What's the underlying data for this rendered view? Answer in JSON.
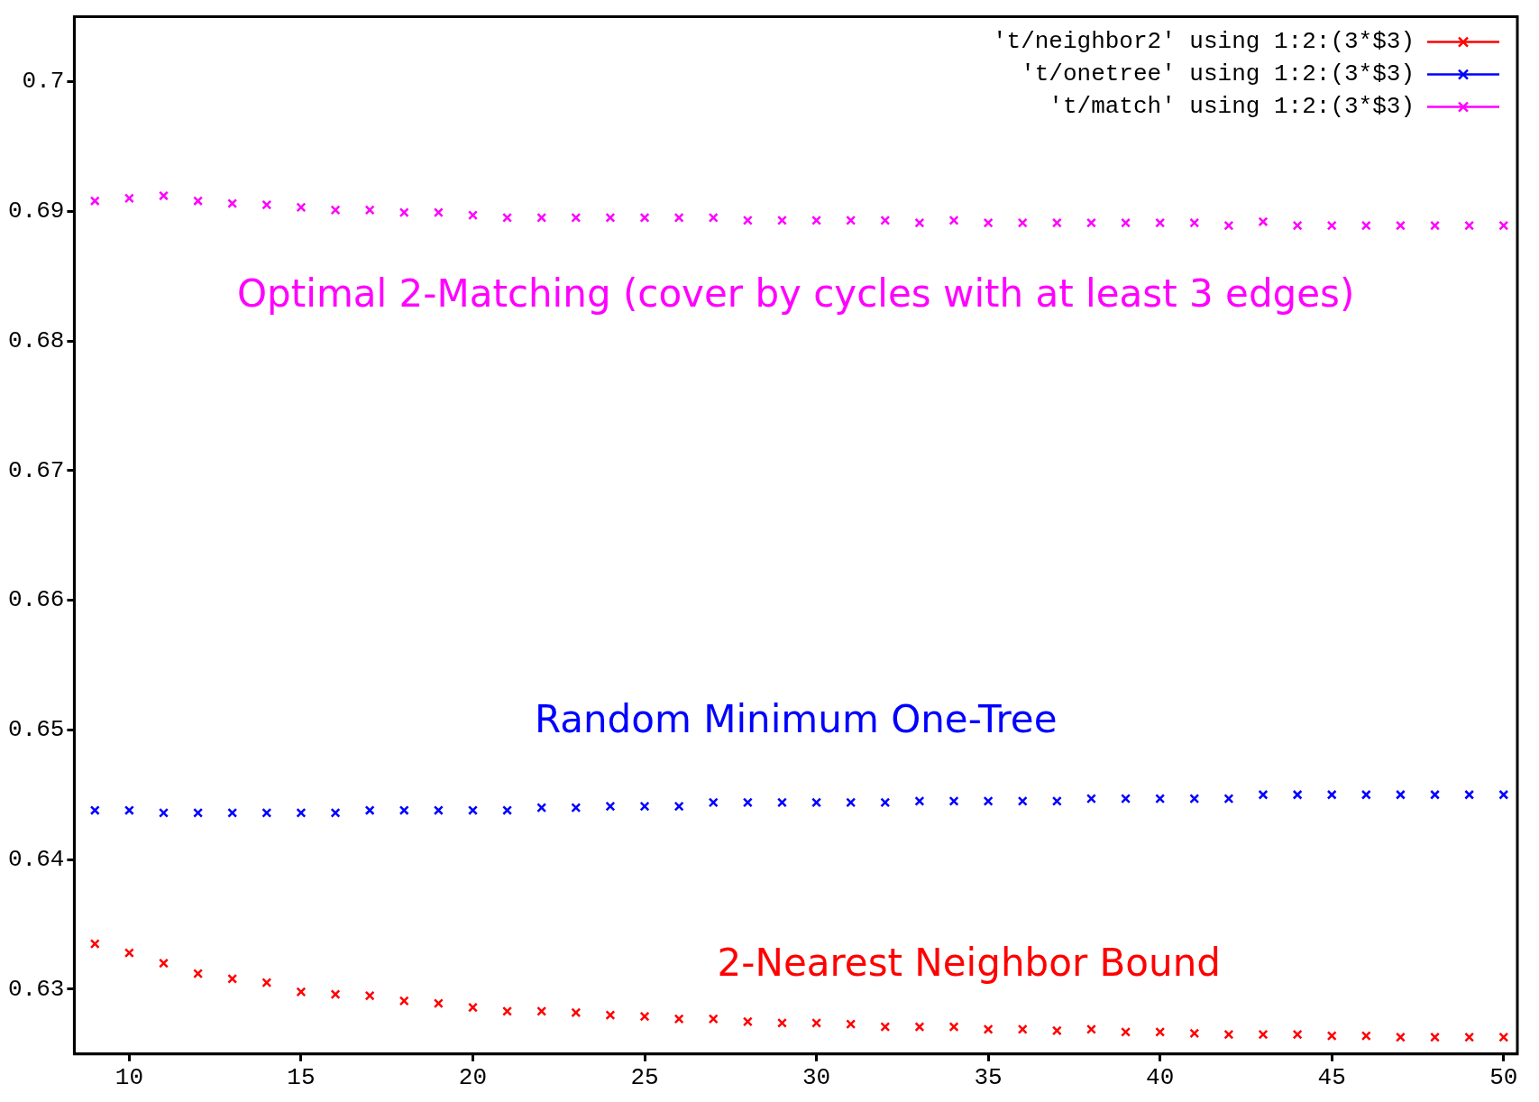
{
  "chart_data": {
    "type": "scatter",
    "x": [
      9,
      10,
      11,
      12,
      13,
      14,
      15,
      16,
      17,
      18,
      19,
      20,
      21,
      22,
      23,
      24,
      25,
      26,
      27,
      28,
      29,
      30,
      31,
      32,
      33,
      34,
      35,
      36,
      37,
      38,
      39,
      40,
      41,
      42,
      43,
      44,
      45,
      46,
      47,
      48,
      49,
      50
    ],
    "series": [
      {
        "name": "'t/neighbor2' using 1:2:(3*$3)",
        "color": "#ff0000",
        "marker": "cross",
        "values": [
          0.6335,
          0.6328,
          0.632,
          0.6312,
          0.6308,
          0.6305,
          0.6298,
          0.6296,
          0.6295,
          0.6291,
          0.6289,
          0.6286,
          0.6283,
          0.6283,
          0.6282,
          0.628,
          0.6279,
          0.6277,
          0.6277,
          0.6275,
          0.6274,
          0.6274,
          0.6273,
          0.6271,
          0.6271,
          0.6271,
          0.6269,
          0.6269,
          0.6268,
          0.6269,
          0.6267,
          0.6267,
          0.6266,
          0.6265,
          0.6265,
          0.6265,
          0.6264,
          0.6264,
          0.6263,
          0.6263,
          0.6263,
          0.6263
        ]
      },
      {
        "name": "'t/onetree' using 1:2:(3*$3)",
        "color": "#0000ff",
        "marker": "cross",
        "values": [
          0.6438,
          0.6438,
          0.6436,
          0.6436,
          0.6436,
          0.6436,
          0.6436,
          0.6436,
          0.6438,
          0.6438,
          0.6438,
          0.6438,
          0.6438,
          0.644,
          0.644,
          0.6441,
          0.6441,
          0.6441,
          0.6444,
          0.6444,
          0.6444,
          0.6444,
          0.6444,
          0.6444,
          0.6445,
          0.6445,
          0.6445,
          0.6445,
          0.6445,
          0.6447,
          0.6447,
          0.6447,
          0.6447,
          0.6447,
          0.645,
          0.645,
          0.645,
          0.645,
          0.645,
          0.645,
          0.645,
          0.645
        ]
      },
      {
        "name": "'t/match' using 1:2:(3*$3)",
        "color": "#ff00ff",
        "marker": "cross",
        "values": [
          0.6908,
          0.691,
          0.6912,
          0.6908,
          0.6906,
          0.6905,
          0.6903,
          0.6901,
          0.6901,
          0.6899,
          0.6899,
          0.6897,
          0.6895,
          0.6895,
          0.6895,
          0.6895,
          0.6895,
          0.6895,
          0.6895,
          0.6893,
          0.6893,
          0.6893,
          0.6893,
          0.6893,
          0.6891,
          0.6893,
          0.6891,
          0.6891,
          0.6891,
          0.6891,
          0.6891,
          0.6891,
          0.6891,
          0.6889,
          0.6892,
          0.6889,
          0.6889,
          0.6889,
          0.6889,
          0.6889,
          0.6889,
          0.6889
        ]
      }
    ],
    "annotations": [
      "2-Nearest Neighbor Bound",
      "Random Minimum One-Tree",
      "Optimal 2-Matching (cover by cycles with at least 3 edges)"
    ],
    "xlim": [
      8.4,
      50.4
    ],
    "xticks": [
      10,
      15,
      20,
      25,
      30,
      35,
      40,
      45,
      50
    ],
    "ylim": [
      0.625,
      0.705
    ],
    "yticks": [
      0.63,
      0.64,
      0.65,
      0.66,
      0.67,
      0.68,
      0.69,
      0.7
    ],
    "grid": false,
    "legend": "top right"
  }
}
